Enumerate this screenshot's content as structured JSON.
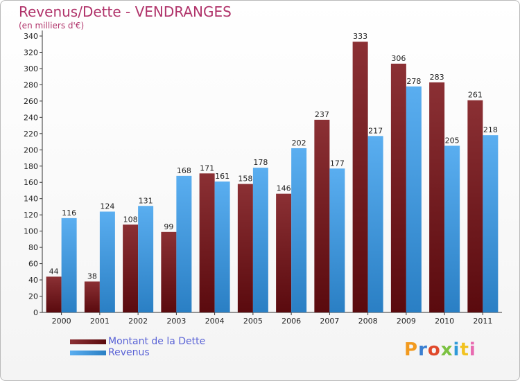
{
  "title": "Revenus/Dette - VENDRANGES",
  "subtitle": "(en milliers d'€)",
  "logo_text": "Proxiti",
  "colors": {
    "debt_top": "#8b3034",
    "debt_bottom": "#5a0a0e",
    "revenue_top": "#5aaef0",
    "revenue_bottom": "#2a7fc4",
    "axis_text": "#222222",
    "title": "#b0336a",
    "legend_text": "#5a63d6"
  },
  "chart_data": {
    "type": "bar",
    "categories": [
      "2000",
      "2001",
      "2002",
      "2003",
      "2004",
      "2005",
      "2006",
      "2007",
      "2008",
      "2009",
      "2010",
      "2011"
    ],
    "series": [
      {
        "name": "Montant de la Dette",
        "values": [
          44,
          38,
          108,
          99,
          171,
          158,
          146,
          237,
          333,
          306,
          283,
          261
        ]
      },
      {
        "name": "Revenus",
        "values": [
          116,
          124,
          131,
          168,
          161,
          178,
          202,
          177,
          217,
          278,
          205,
          218
        ]
      }
    ],
    "ylim": [
      0,
      340
    ],
    "ytick_step": 20,
    "grid": false,
    "legend_position": "bottom-left"
  }
}
